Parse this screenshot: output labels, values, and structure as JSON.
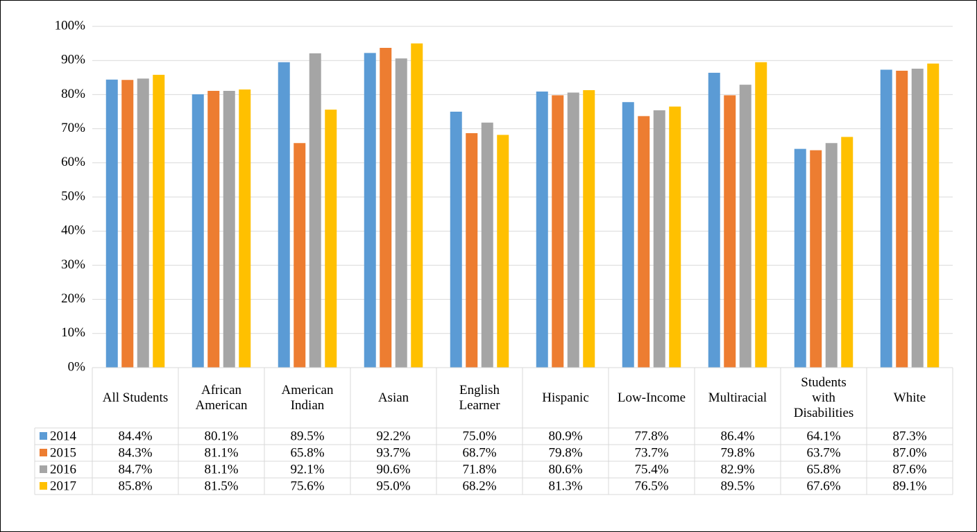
{
  "chart_data": {
    "type": "bar",
    "categories": [
      "All Students",
      "African American",
      "American Indian",
      "Asian",
      "English Learner",
      "Hispanic",
      "Low-Income",
      "Multiracial",
      "Students with Disabilities",
      "White"
    ],
    "series": [
      {
        "name": "2014",
        "color": "#5b9bd5",
        "values": [
          84.4,
          80.1,
          89.5,
          92.2,
          75.0,
          80.9,
          77.8,
          86.4,
          64.1,
          87.3
        ],
        "value_labels": [
          "84.4%",
          "80.1%",
          "89.5%",
          "92.2%",
          "75.0%",
          "80.9%",
          "77.8%",
          "86.4%",
          "64.1%",
          "87.3%"
        ]
      },
      {
        "name": "2015",
        "color": "#ed7d31",
        "values": [
          84.3,
          81.1,
          65.8,
          93.7,
          68.7,
          79.8,
          73.7,
          79.8,
          63.7,
          87.0
        ],
        "value_labels": [
          "84.3%",
          "81.1%",
          "65.8%",
          "93.7%",
          "68.7%",
          "79.8%",
          "73.7%",
          "79.8%",
          "63.7%",
          "87.0%"
        ]
      },
      {
        "name": "2016",
        "color": "#a5a5a5",
        "values": [
          84.7,
          81.1,
          92.1,
          90.6,
          71.8,
          80.6,
          75.4,
          82.9,
          65.8,
          87.6
        ],
        "value_labels": [
          "84.7%",
          "81.1%",
          "92.1%",
          "90.6%",
          "71.8%",
          "80.6%",
          "75.4%",
          "82.9%",
          "65.8%",
          "87.6%"
        ]
      },
      {
        "name": "2017",
        "color": "#ffc000",
        "values": [
          85.8,
          81.5,
          75.6,
          95.0,
          68.2,
          81.3,
          76.5,
          89.5,
          67.6,
          89.1
        ],
        "value_labels": [
          "85.8%",
          "81.5%",
          "75.6%",
          "95.0%",
          "68.2%",
          "81.3%",
          "76.5%",
          "89.5%",
          "67.6%",
          "89.1%"
        ]
      }
    ],
    "ylim": [
      0,
      100
    ],
    "yticks": [
      {
        "value": 0,
        "label": "0%"
      },
      {
        "value": 10,
        "label": "10%"
      },
      {
        "value": 20,
        "label": "20%"
      },
      {
        "value": 30,
        "label": "30%"
      },
      {
        "value": 40,
        "label": "40%"
      },
      {
        "value": 50,
        "label": "50%"
      },
      {
        "value": 60,
        "label": "60%"
      },
      {
        "value": 70,
        "label": "70%"
      },
      {
        "value": 80,
        "label": "80%"
      },
      {
        "value": 90,
        "label": "90%"
      },
      {
        "value": 100,
        "label": "100%"
      }
    ],
    "grid": true
  }
}
